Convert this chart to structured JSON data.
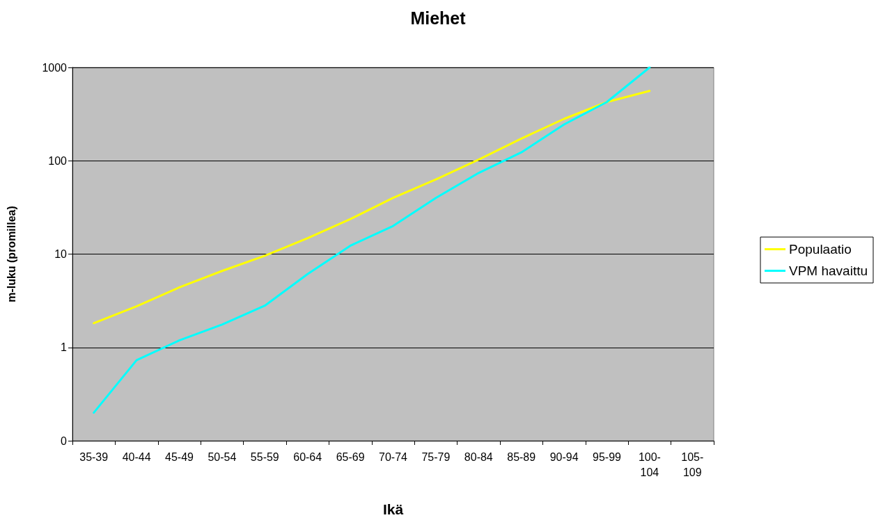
{
  "chart_data": {
    "type": "line",
    "title": "Miehet",
    "xlabel": "Ikä",
    "ylabel": "m-luku (promillea)",
    "categories": [
      "35-39",
      "40-44",
      "45-49",
      "50-54",
      "55-59",
      "60-64",
      "65-69",
      "70-74",
      "75-79",
      "80-84",
      "85-89",
      "90-94",
      "95-99",
      "100-104",
      "105-109"
    ],
    "series": [
      {
        "name": "Populaatio",
        "color": "#ffff00",
        "values": [
          1.82,
          2.76,
          4.4,
          6.6,
          9.6,
          14.8,
          23.7,
          40,
          63,
          103,
          173,
          281,
          426,
          560,
          null
        ]
      },
      {
        "name": "VPM havaittu",
        "color": "#00ffff",
        "values": [
          0.2,
          0.73,
          1.19,
          1.76,
          2.8,
          6.1,
          12.3,
          20,
          40,
          74,
          123,
          245,
          426,
          1000,
          null
        ]
      }
    ],
    "log": "y",
    "ylim": [
      0.1,
      1000
    ],
    "yticks": [
      {
        "value": 0.1,
        "label": "0"
      },
      1,
      10,
      100,
      1000
    ],
    "grid": "y",
    "legend": "right",
    "marker": "none",
    "line_style": "solid"
  }
}
